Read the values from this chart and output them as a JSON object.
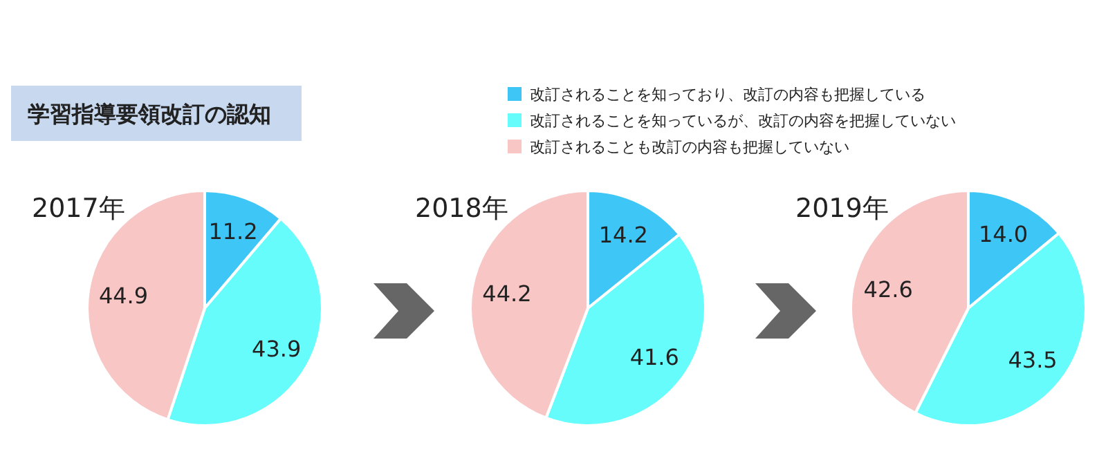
{
  "chart_data": [
    {
      "type": "other",
      "title": "学習指導要領改訂の認知"
    },
    {
      "type": "pie",
      "title": "2017年",
      "categories": [
        "改訂されることを知っており、改訂の内容も把握している",
        "改訂されることを知っているが、改訂の内容を把握していない",
        "改訂されることも改訂の内容も把握していない"
      ],
      "values": [
        11.2,
        43.9,
        44.9
      ],
      "value_labels": [
        "11.2",
        "43.9",
        "44.9"
      ],
      "colors": [
        "#3ec6f6",
        "#66fcfc",
        "#f9c6c6"
      ],
      "legend": "top"
    },
    {
      "type": "pie",
      "title": "2018年",
      "categories": [
        null,
        null,
        null
      ],
      "values": [
        14.2,
        41.6,
        44.2
      ],
      "value_labels": [
        "14.2",
        "41.6",
        "44.2"
      ],
      "colors": [
        "#3ec6f6",
        "#66fcfc",
        "#f9c6c6"
      ]
    },
    {
      "type": "pie",
      "title": "2019年",
      "categories": [
        null,
        null,
        null
      ],
      "values": [
        14.0,
        43.5,
        42.6
      ],
      "value_labels": [
        "14.0",
        "43.5",
        "42.6"
      ],
      "colors": [
        "#3ec6f6",
        "#66fcfc",
        "#f9c6c6"
      ]
    }
  ]
}
